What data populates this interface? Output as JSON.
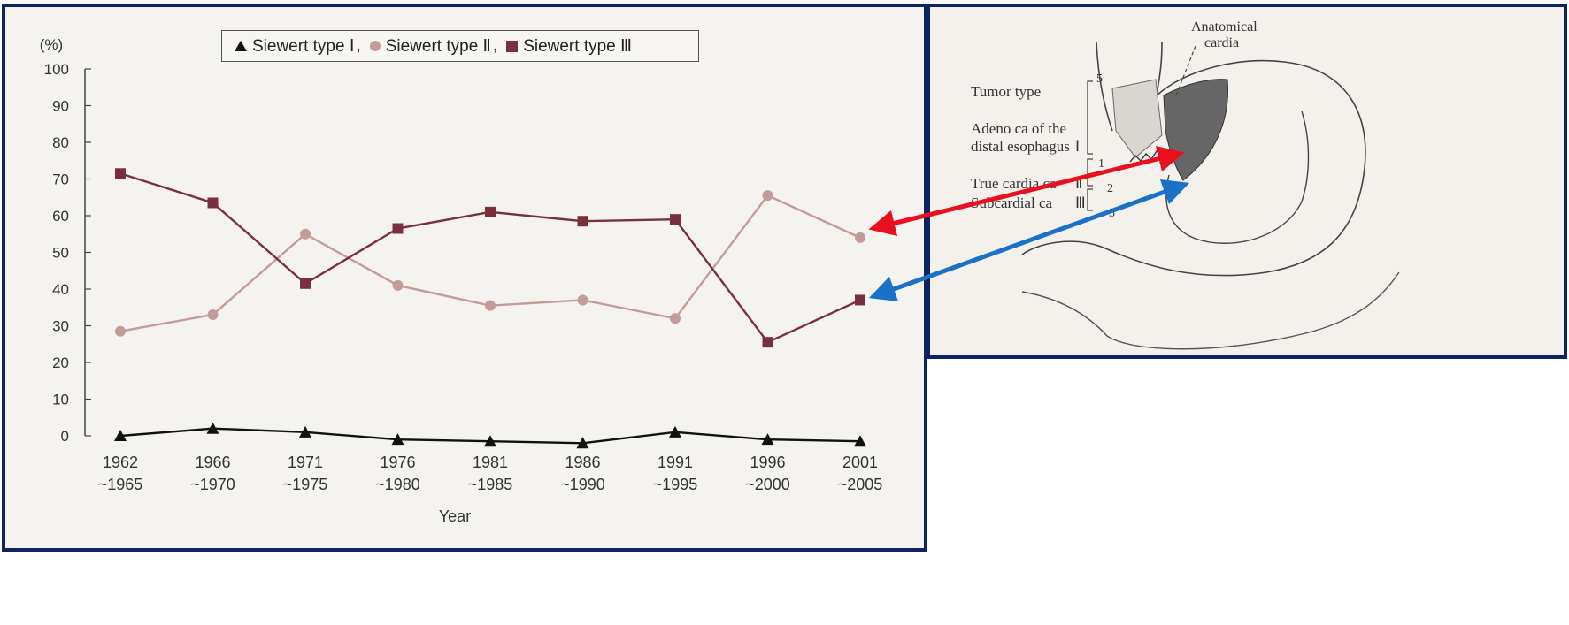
{
  "chart_data": {
    "type": "line",
    "ylabel": "(%)",
    "xlabel": "Year",
    "ylim": [
      0,
      100
    ],
    "yticks": [
      0,
      10,
      20,
      30,
      40,
      50,
      60,
      70,
      80,
      90,
      100
    ],
    "categories": [
      {
        "top": "1962",
        "bottom": "~1965"
      },
      {
        "top": "1966",
        "bottom": "~1970"
      },
      {
        "top": "1971",
        "bottom": "~1975"
      },
      {
        "top": "1976",
        "bottom": "~1980"
      },
      {
        "top": "1981",
        "bottom": "~1985"
      },
      {
        "top": "1986",
        "bottom": "~1990"
      },
      {
        "top": "1991",
        "bottom": "~1995"
      },
      {
        "top": "1996",
        "bottom": "~2000"
      },
      {
        "top": "2001",
        "bottom": "~2005"
      }
    ],
    "series": [
      {
        "name": "Siewert type Ⅰ",
        "marker": "triangle",
        "color": "#111111",
        "values": [
          0,
          2,
          1,
          -1,
          -1.5,
          -2,
          1,
          -1,
          -1.5
        ]
      },
      {
        "name": "Siewert type Ⅱ",
        "marker": "circle",
        "color": "#c39c9a",
        "values": [
          28.5,
          33,
          55,
          41,
          35.5,
          37,
          32,
          65.5,
          54
        ]
      },
      {
        "name": "Siewert type Ⅲ",
        "marker": "square",
        "color": "#7a2f3f",
        "values": [
          71.5,
          63.5,
          41.5,
          56.5,
          61,
          58.5,
          59,
          25.5,
          37
        ]
      }
    ],
    "legend": {
      "position": "top",
      "entries": [
        "Siewert type Ⅰ",
        "Siewert type Ⅱ",
        "Siewert type Ⅲ"
      ],
      "separator": ","
    },
    "grid": false
  },
  "diagram": {
    "anatomical_label_line1": "Anatomical",
    "anatomical_label_line2": "cardia",
    "tumor_type": "Tumor type",
    "adeno_line1": "Adeno ca of the",
    "adeno_line2": "distal esophagus",
    "true_cardia": "True cardia ca",
    "subcardial": "Subcardial ca",
    "roman1": "Ⅰ",
    "roman2": "Ⅱ",
    "roman3": "Ⅲ",
    "num5a": "5",
    "num1": "1",
    "num2": "2",
    "num5b": "5"
  },
  "colors": {
    "panel_border": "#0e2460",
    "arrow_red": "#e8101e",
    "arrow_blue": "#1a72c8"
  }
}
